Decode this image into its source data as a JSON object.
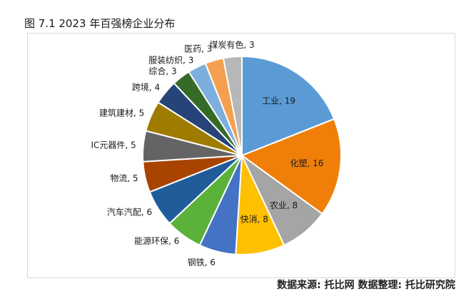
{
  "figure": {
    "title": "图 7.1 2023 年百强榜企业分布",
    "source_note": "数据来源: 托比网 数据整理: 托比研究院"
  },
  "chart_data": {
    "type": "pie",
    "title": "",
    "slices": [
      {
        "label": "工业",
        "value": 19,
        "color": "#5B9BD5"
      },
      {
        "label": "化塑",
        "value": 16,
        "color": "#F07F09"
      },
      {
        "label": "农业",
        "value": 8,
        "color": "#A5A5A5"
      },
      {
        "label": "快消",
        "value": 8,
        "color": "#FFC000"
      },
      {
        "label": "钢铁",
        "value": 6,
        "color": "#4472C4"
      },
      {
        "label": "能源环保",
        "value": 6,
        "color": "#5AB23B"
      },
      {
        "label": "汽车汽配",
        "value": 6,
        "color": "#1F5C99"
      },
      {
        "label": "物流",
        "value": 5,
        "color": "#A84300"
      },
      {
        "label": "IC元器件",
        "value": 5,
        "color": "#646464"
      },
      {
        "label": "建筑建材",
        "value": 5,
        "color": "#9E7C00"
      },
      {
        "label": "跨境",
        "value": 4,
        "color": "#264478"
      },
      {
        "label": "综合",
        "value": 3,
        "color": "#346B27"
      },
      {
        "label": "服装纺织",
        "value": 3,
        "color": "#7CAFDD"
      },
      {
        "label": "医药",
        "value": 3,
        "color": "#F4A050"
      },
      {
        "label": "煤炭有色",
        "value": 3,
        "color": "#B7B7B7"
      }
    ],
    "legend": "none",
    "data_labels": "category, value"
  }
}
